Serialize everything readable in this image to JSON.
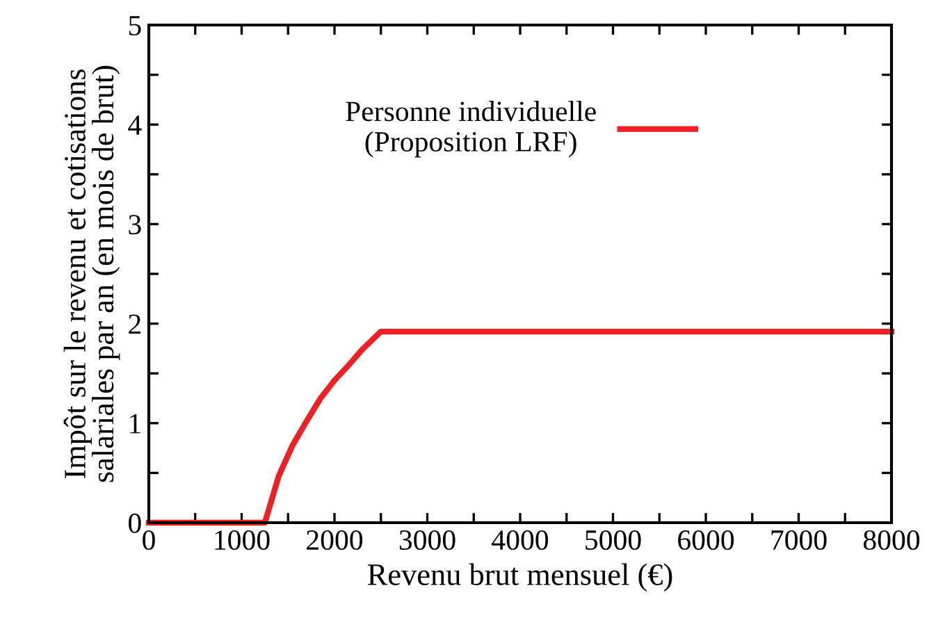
{
  "chart_data": {
    "type": "line",
    "xlabel": "Revenu brut mensuel (€)",
    "ylabel": "Impôt sur le revenu et cotisations\nsalariales par an (en mois de brut)",
    "x": [
      0,
      1250,
      1400,
      1550,
      1700,
      1850,
      2000,
      2150,
      2300,
      2500,
      8000
    ],
    "series": [
      {
        "name": "Personne individuelle\n(Proposition LRF)",
        "color": "#ee2024",
        "values": [
          0,
          0,
          0.47,
          0.78,
          1.02,
          1.25,
          1.43,
          1.58,
          1.74,
          1.92,
          1.92
        ]
      }
    ],
    "xlim": [
      0,
      8000
    ],
    "xticks": [
      0,
      {
        "value": 500,
        "label": null
      },
      1000,
      {
        "value": 1500,
        "label": null
      },
      2000,
      {
        "value": 2500,
        "label": null
      },
      3000,
      {
        "value": 3500,
        "label": null
      },
      4000,
      {
        "value": 4500,
        "label": null
      },
      5000,
      {
        "value": 5500,
        "label": null
      },
      6000,
      {
        "value": 6500,
        "label": null
      },
      7000,
      {
        "value": 7500,
        "label": null
      },
      8000
    ],
    "ylim": [
      0,
      5
    ],
    "yticks": [
      0,
      {
        "value": 0.5,
        "label": null
      },
      1,
      {
        "value": 1.5,
        "label": null
      },
      2,
      {
        "value": 2.5,
        "label": null
      },
      3,
      {
        "value": 3.5,
        "label": null
      },
      4,
      {
        "value": 4.5,
        "label": null
      },
      5
    ],
    "grid": false,
    "legend": "top",
    "marker": "none",
    "line_style": "solid"
  }
}
